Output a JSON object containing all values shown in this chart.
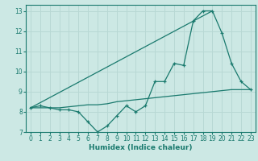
{
  "xlabel": "Humidex (Indice chaleur)",
  "bg_color": "#cce8e4",
  "line_color": "#1a7a6e",
  "grid_color": "#b8d8d4",
  "xlim": [
    -0.5,
    23.5
  ],
  "ylim": [
    7,
    13.3
  ],
  "yticks": [
    7,
    8,
    9,
    10,
    11,
    12,
    13
  ],
  "xticks": [
    0,
    1,
    2,
    3,
    4,
    5,
    6,
    7,
    8,
    9,
    10,
    11,
    12,
    13,
    14,
    15,
    16,
    17,
    18,
    19,
    20,
    21,
    22,
    23
  ],
  "line1_x": [
    0,
    1,
    2,
    3,
    4,
    5,
    6,
    7,
    8,
    9,
    10,
    11,
    12,
    13,
    14,
    15,
    16,
    17,
    18,
    19,
    20,
    21,
    22,
    23
  ],
  "line1_y": [
    8.2,
    8.3,
    8.2,
    8.1,
    8.1,
    8.0,
    7.5,
    7.0,
    7.3,
    7.8,
    8.3,
    8.0,
    8.3,
    9.5,
    9.5,
    10.4,
    10.3,
    12.5,
    13.0,
    13.0,
    11.9,
    10.4,
    9.5,
    9.1
  ],
  "line2_x": [
    0,
    1,
    2,
    3,
    4,
    5,
    6,
    7,
    8,
    9,
    10,
    11,
    12,
    13,
    14,
    15,
    16,
    17,
    18,
    19,
    20,
    21,
    22,
    23
  ],
  "line2_y": [
    8.2,
    8.2,
    8.2,
    8.2,
    8.25,
    8.3,
    8.35,
    8.35,
    8.4,
    8.5,
    8.55,
    8.6,
    8.65,
    8.7,
    8.75,
    8.8,
    8.85,
    8.9,
    8.95,
    9.0,
    9.05,
    9.1,
    9.1,
    9.1
  ],
  "line3_x": [
    0,
    19
  ],
  "line3_y": [
    8.2,
    13.0
  ]
}
